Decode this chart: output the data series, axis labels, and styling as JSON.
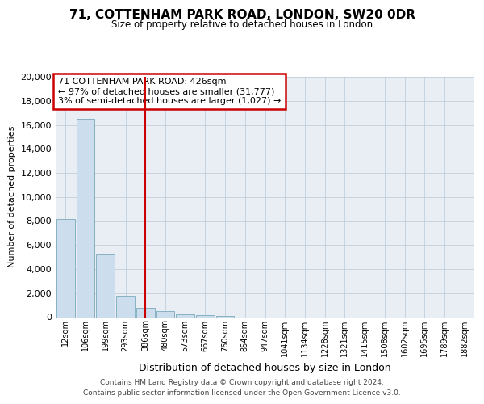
{
  "title": "71, COTTENHAM PARK ROAD, LONDON, SW20 0DR",
  "subtitle": "Size of property relative to detached houses in London",
  "xlabel": "Distribution of detached houses by size in London",
  "ylabel": "Number of detached properties",
  "categories": [
    "12sqm",
    "106sqm",
    "199sqm",
    "293sqm",
    "386sqm",
    "480sqm",
    "573sqm",
    "667sqm",
    "760sqm",
    "854sqm",
    "947sqm",
    "1041sqm",
    "1134sqm",
    "1228sqm",
    "1321sqm",
    "1415sqm",
    "1508sqm",
    "1602sqm",
    "1695sqm",
    "1789sqm",
    "1882sqm"
  ],
  "values": [
    8200,
    16500,
    5300,
    1800,
    750,
    500,
    250,
    200,
    130,
    0,
    0,
    0,
    0,
    0,
    0,
    0,
    0,
    0,
    0,
    0,
    0
  ],
  "bar_color": "#ccdded",
  "bar_edge_color": "#7aaabb",
  "vline_color": "#cc0000",
  "vline_pos": 4.0,
  "ylim": [
    0,
    20000
  ],
  "yticks": [
    0,
    2000,
    4000,
    6000,
    8000,
    10000,
    12000,
    14000,
    16000,
    18000,
    20000
  ],
  "annotation_line1": "71 COTTENHAM PARK ROAD: 426sqm",
  "annotation_line2": "← 97% of detached houses are smaller (31,777)",
  "annotation_line3": "3% of semi-detached houses are larger (1,027) →",
  "annotation_box_color": "#cc0000",
  "footer_line1": "Contains HM Land Registry data © Crown copyright and database right 2024.",
  "footer_line2": "Contains public sector information licensed under the Open Government Licence v3.0.",
  "fig_bg_color": "#ffffff",
  "plot_bg_color": "#e8eef4"
}
